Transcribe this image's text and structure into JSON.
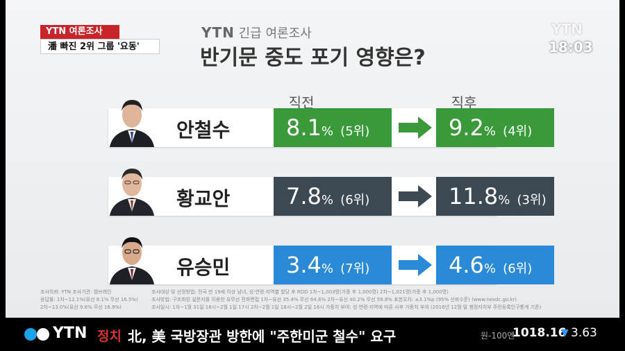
{
  "caption": {
    "label": "YTN 여론조사",
    "headline": "潘 빠진 2위 그룹 '요동'"
  },
  "title": {
    "brand": "YTN",
    "sub": "긴급 여론조사",
    "main": "반기문 중도 포기 영향은?"
  },
  "watermark": "YTN",
  "clock": "18:03",
  "columns": {
    "before": "직전",
    "after": "직후"
  },
  "candidates": [
    {
      "name": "안철수",
      "before": "8.1",
      "before_rank": "(5위)",
      "after": "9.2",
      "after_rank": "(4위)",
      "color_before": "#3a9a3a",
      "color_after": "#3a9a3a"
    },
    {
      "name": "황교안",
      "before": "7.8",
      "before_rank": "(6위)",
      "after": "11.8",
      "after_rank": "(3위)",
      "color_before": "#3c4852",
      "color_after": "#3c4852"
    },
    {
      "name": "유승민",
      "before": "3.4",
      "before_rank": "(7위)",
      "after": "4.6",
      "after_rank": "(6위)",
      "color_before": "#2a8ad8",
      "color_after": "#2a8ad8"
    }
  ],
  "pct_sign": "%",
  "footnotes": [
    {
      "left": "조사의뢰: YTN     조사기관: 엠브레인",
      "right": "조사대상 및 선정방법: 전국 만 19세 이상 남녀, 성·연령·지역별 할당 후 RDD  1차~1,003명(가중 후 1,000명)   2차~1,021명(가중 후 1,000명)"
    },
    {
      "left": "응답률: 1차~12.1%(유선 8.1% 무선 16.5%)",
      "right": "조사방법: 구조화된 설문지를 이용한 유무선 전화면접  1차~유선 35.4% 무선 64.6%   2차~유선 40.2% 무선 59.8%        표본오차: ±3.1%p (95% 신뢰수준)       (www.nesdc.go.kr)"
    },
    {
      "left": "      2차~13.0%(유선 9.6% 무선 16.9%)",
      "right": "조사일시: 1차~1월 31일 18시~2월 1일 17시   2차~2월 1일 18시~2월 2일 16시  가중치 부여: 성·연령·지역에 따른 사후 가중치 부여 (2016년 12월 말 행정자치부 주민등록인구통계 기준)"
    }
  ],
  "ticker": {
    "logo": "YTN",
    "category": "정치",
    "headline": "北, 美 국방장관 방한에 \"주한미군 철수\" 요구",
    "fx_label": "원-100엔",
    "fx_value": "1018.16",
    "fx_direction": "down",
    "fx_change": "3.63"
  }
}
